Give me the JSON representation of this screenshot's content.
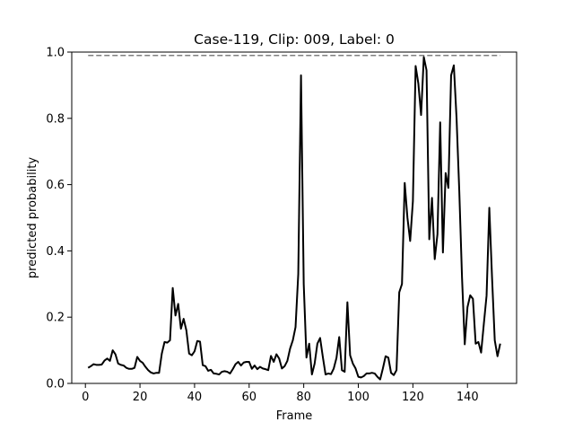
{
  "chart_data": {
    "type": "line",
    "title": "Case-119, Clip: 009, Label: 0",
    "xlabel": "Frame",
    "ylabel": "predicted probability",
    "xlim": [
      -5,
      158
    ],
    "ylim": [
      0,
      1
    ],
    "xticks": [
      0,
      20,
      40,
      60,
      80,
      100,
      120,
      140
    ],
    "yticks": [
      "0.0",
      "0.2",
      "0.4",
      "0.6",
      "0.8",
      "1.0"
    ],
    "grid": false,
    "legend": "none",
    "series": [
      {
        "color": "#000000",
        "style": "solid",
        "x": [
          1,
          2,
          3,
          4,
          5,
          6,
          7,
          8,
          9,
          10,
          11,
          12,
          13,
          14,
          15,
          16,
          17,
          18,
          19,
          20,
          21,
          22,
          23,
          24,
          25,
          26,
          27,
          28,
          29,
          30,
          31,
          32,
          33,
          34,
          35,
          36,
          37,
          38,
          39,
          40,
          41,
          42,
          43,
          44,
          45,
          46,
          47,
          48,
          49,
          50,
          51,
          52,
          53,
          54,
          55,
          56,
          57,
          58,
          59,
          60,
          61,
          62,
          63,
          64,
          65,
          66,
          67,
          68,
          69,
          70,
          71,
          72,
          73,
          74,
          75,
          76,
          77,
          78,
          79,
          80,
          81,
          82,
          83,
          84,
          85,
          86,
          87,
          88,
          89,
          90,
          91,
          92,
          93,
          94,
          95,
          96,
          97,
          98,
          99,
          100,
          101,
          102,
          103,
          104,
          105,
          106,
          107,
          108,
          109,
          110,
          111,
          112,
          113,
          114,
          115,
          116,
          117,
          118,
          119,
          120,
          121,
          122,
          123,
          124,
          125,
          126,
          127,
          128,
          129,
          130,
          131,
          132,
          133,
          134,
          135,
          136,
          137,
          138,
          139,
          140,
          141,
          142,
          143,
          144,
          145,
          146,
          147,
          148,
          149,
          150,
          151,
          152
        ],
        "y": [
          0.047,
          0.052,
          0.058,
          0.056,
          0.056,
          0.057,
          0.069,
          0.075,
          0.068,
          0.1,
          0.088,
          0.06,
          0.056,
          0.054,
          0.047,
          0.044,
          0.044,
          0.047,
          0.08,
          0.068,
          0.062,
          0.05,
          0.04,
          0.033,
          0.03,
          0.032,
          0.032,
          0.09,
          0.125,
          0.123,
          0.13,
          0.288,
          0.205,
          0.24,
          0.165,
          0.195,
          0.16,
          0.09,
          0.085,
          0.097,
          0.128,
          0.126,
          0.055,
          0.052,
          0.038,
          0.041,
          0.03,
          0.029,
          0.027,
          0.035,
          0.037,
          0.035,
          0.03,
          0.043,
          0.058,
          0.065,
          0.054,
          0.063,
          0.065,
          0.065,
          0.044,
          0.054,
          0.043,
          0.05,
          0.045,
          0.043,
          0.04,
          0.083,
          0.065,
          0.088,
          0.075,
          0.045,
          0.052,
          0.068,
          0.105,
          0.13,
          0.17,
          0.33,
          0.93,
          0.3,
          0.078,
          0.12,
          0.027,
          0.06,
          0.12,
          0.137,
          0.08,
          0.027,
          0.03,
          0.028,
          0.045,
          0.077,
          0.14,
          0.04,
          0.035,
          0.245,
          0.085,
          0.06,
          0.045,
          0.02,
          0.018,
          0.022,
          0.03,
          0.03,
          0.032,
          0.03,
          0.02,
          0.012,
          0.045,
          0.082,
          0.078,
          0.032,
          0.025,
          0.04,
          0.275,
          0.3,
          0.605,
          0.5,
          0.43,
          0.55,
          0.958,
          0.905,
          0.81,
          0.985,
          0.945,
          0.435,
          0.56,
          0.375,
          0.45,
          0.788,
          0.395,
          0.635,
          0.59,
          0.93,
          0.96,
          0.8,
          0.58,
          0.32,
          0.118,
          0.23,
          0.266,
          0.255,
          0.12,
          0.125,
          0.093,
          0.18,
          0.265,
          0.53,
          0.32,
          0.13,
          0.082,
          0.12
        ]
      },
      {
        "color": "#7f7f7f",
        "style": "dashed",
        "x": [
          1,
          152
        ],
        "y": [
          0.99,
          0.99
        ]
      }
    ]
  }
}
